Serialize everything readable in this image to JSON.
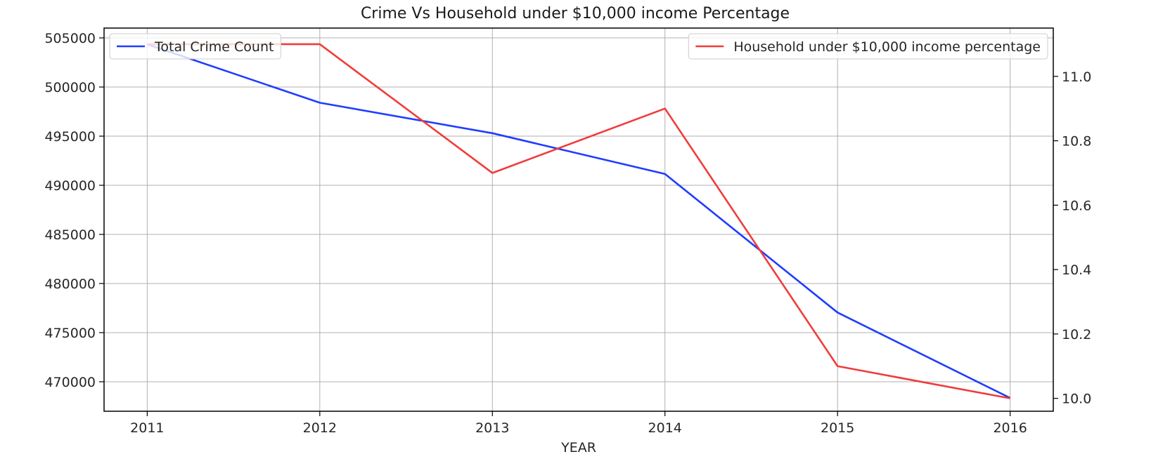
{
  "chart_data": {
    "type": "line",
    "title": "Crime Vs Household under $10,000 income Percentage",
    "xlabel": "YEAR",
    "ylabel": "",
    "y2label": "",
    "x": [
      2011,
      2012,
      2013,
      2014,
      2015,
      2016
    ],
    "xlim": [
      2010.75,
      2016.25
    ],
    "ylim": [
      467000,
      506000
    ],
    "y2lim": [
      9.96,
      11.15
    ],
    "x_ticks": [
      "2011",
      "2012",
      "2013",
      "2014",
      "2015",
      "2016"
    ],
    "y_ticks": [
      "470000",
      "475000",
      "480000",
      "485000",
      "490000",
      "495000",
      "500000",
      "505000"
    ],
    "y2_ticks": [
      "10.0",
      "10.2",
      "10.4",
      "10.6",
      "10.8",
      "11.0"
    ],
    "grid": true,
    "series": [
      {
        "name": "Total Crime Count",
        "axis": "left",
        "color": "#1f3dff",
        "values": [
          504350,
          498400,
          495300,
          491150,
          477050,
          468350
        ],
        "legend_position": "upper left"
      },
      {
        "name": "Household under $10,000 income percentage",
        "axis": "right",
        "color": "#f03c3c",
        "values": [
          11.1,
          11.1,
          10.7,
          10.9,
          10.1,
          10.0
        ],
        "legend_position": "upper right"
      }
    ]
  }
}
